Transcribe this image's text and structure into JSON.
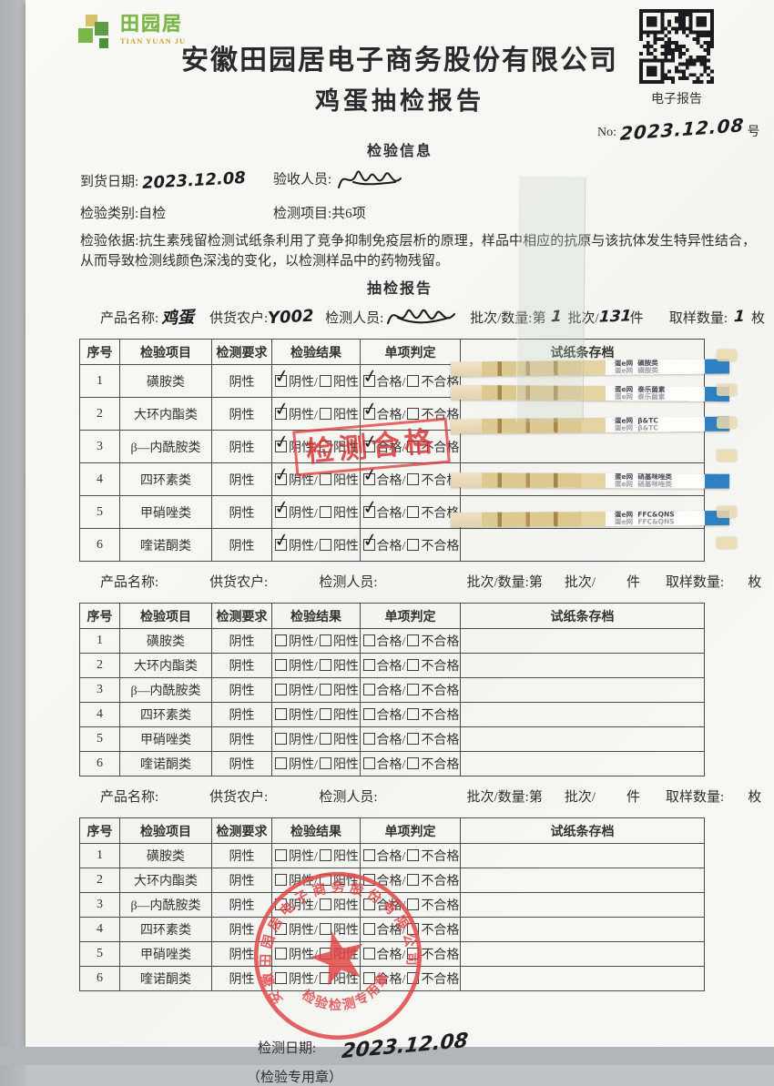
{
  "header": {
    "logo_cn": "田园居",
    "logo_en": "TIAN YUAN JU",
    "company": "安徽田园居电子商务股份有限公司",
    "title": "鸡蛋抽检报告",
    "qr_caption": "电子报告",
    "no_prefix": "No:",
    "no_value": "2023.12.08",
    "no_suffix": "号"
  },
  "info": {
    "heading": "检验信息",
    "arrival_label": "到货日期:",
    "arrival_value": "2023.12.08",
    "receiver_label": "验收人员:",
    "type_label": "检验类别:",
    "type_value": "自检",
    "items_label": "检测项目:",
    "items_value": "共6项",
    "basis_label": "检验依据:",
    "basis_text": "抗生素残留检测试纸条利用了竞争抑制免疫层析的原理，样品中相应的抗原与该抗体发生特异性结合，从而导致检测线颜色深浅的变化，以检测样品中的药物残留。"
  },
  "report_heading": "抽检报告",
  "product_line_labels": {
    "name": "产品名称:",
    "farmer": "供货农户:",
    "inspector": "检测人员:",
    "batch_prefix": "批次/数量:第",
    "batch_mid": "批次/",
    "batch_unit": "件",
    "sample_label": "取样数量:",
    "sample_unit": "枚"
  },
  "table_template": {
    "headers": [
      "序号",
      "检验项目",
      "检测要求",
      "检验结果",
      "单项判定",
      "试纸条存档"
    ],
    "row_items": [
      "磺胺类",
      "大环内酯类",
      "β—内酰胺类",
      "四环素类",
      "甲硝唑类",
      "喹诺酮类"
    ],
    "requirement": "阴性",
    "result_neg": "阴性",
    "result_pos": "阳性",
    "judge_pass": "合格",
    "judge_fail": "不合格",
    "slash": "/"
  },
  "sections": [
    {
      "product_name": "鸡蛋",
      "farmer": "Y002",
      "batch_no": "1",
      "batch_qty": "131",
      "sample_qty": "1",
      "checked": true,
      "has_signature": true
    },
    {
      "product_name": "",
      "farmer": "",
      "batch_no": "",
      "batch_qty": "",
      "sample_qty": "",
      "checked": false,
      "has_signature": false
    },
    {
      "product_name": "",
      "farmer": "",
      "batch_no": "",
      "batch_qty": "",
      "sample_qty": "",
      "checked": false,
      "has_signature": false
    }
  ],
  "strips": {
    "brand": "蛋e网",
    "items": [
      "磺胺类",
      "泰乐菌素",
      "β&TC",
      "硝基咪唑类",
      "FFC&QNS"
    ]
  },
  "stamps": {
    "pass": "检测合格",
    "round_top": "安徽田园居电子商务股份有限公司",
    "round_bottom": "检验检测专用章"
  },
  "footer": {
    "date_label": "检测日期:",
    "date_value": "2023.12.08",
    "seal_note": "（检验专用章）"
  }
}
